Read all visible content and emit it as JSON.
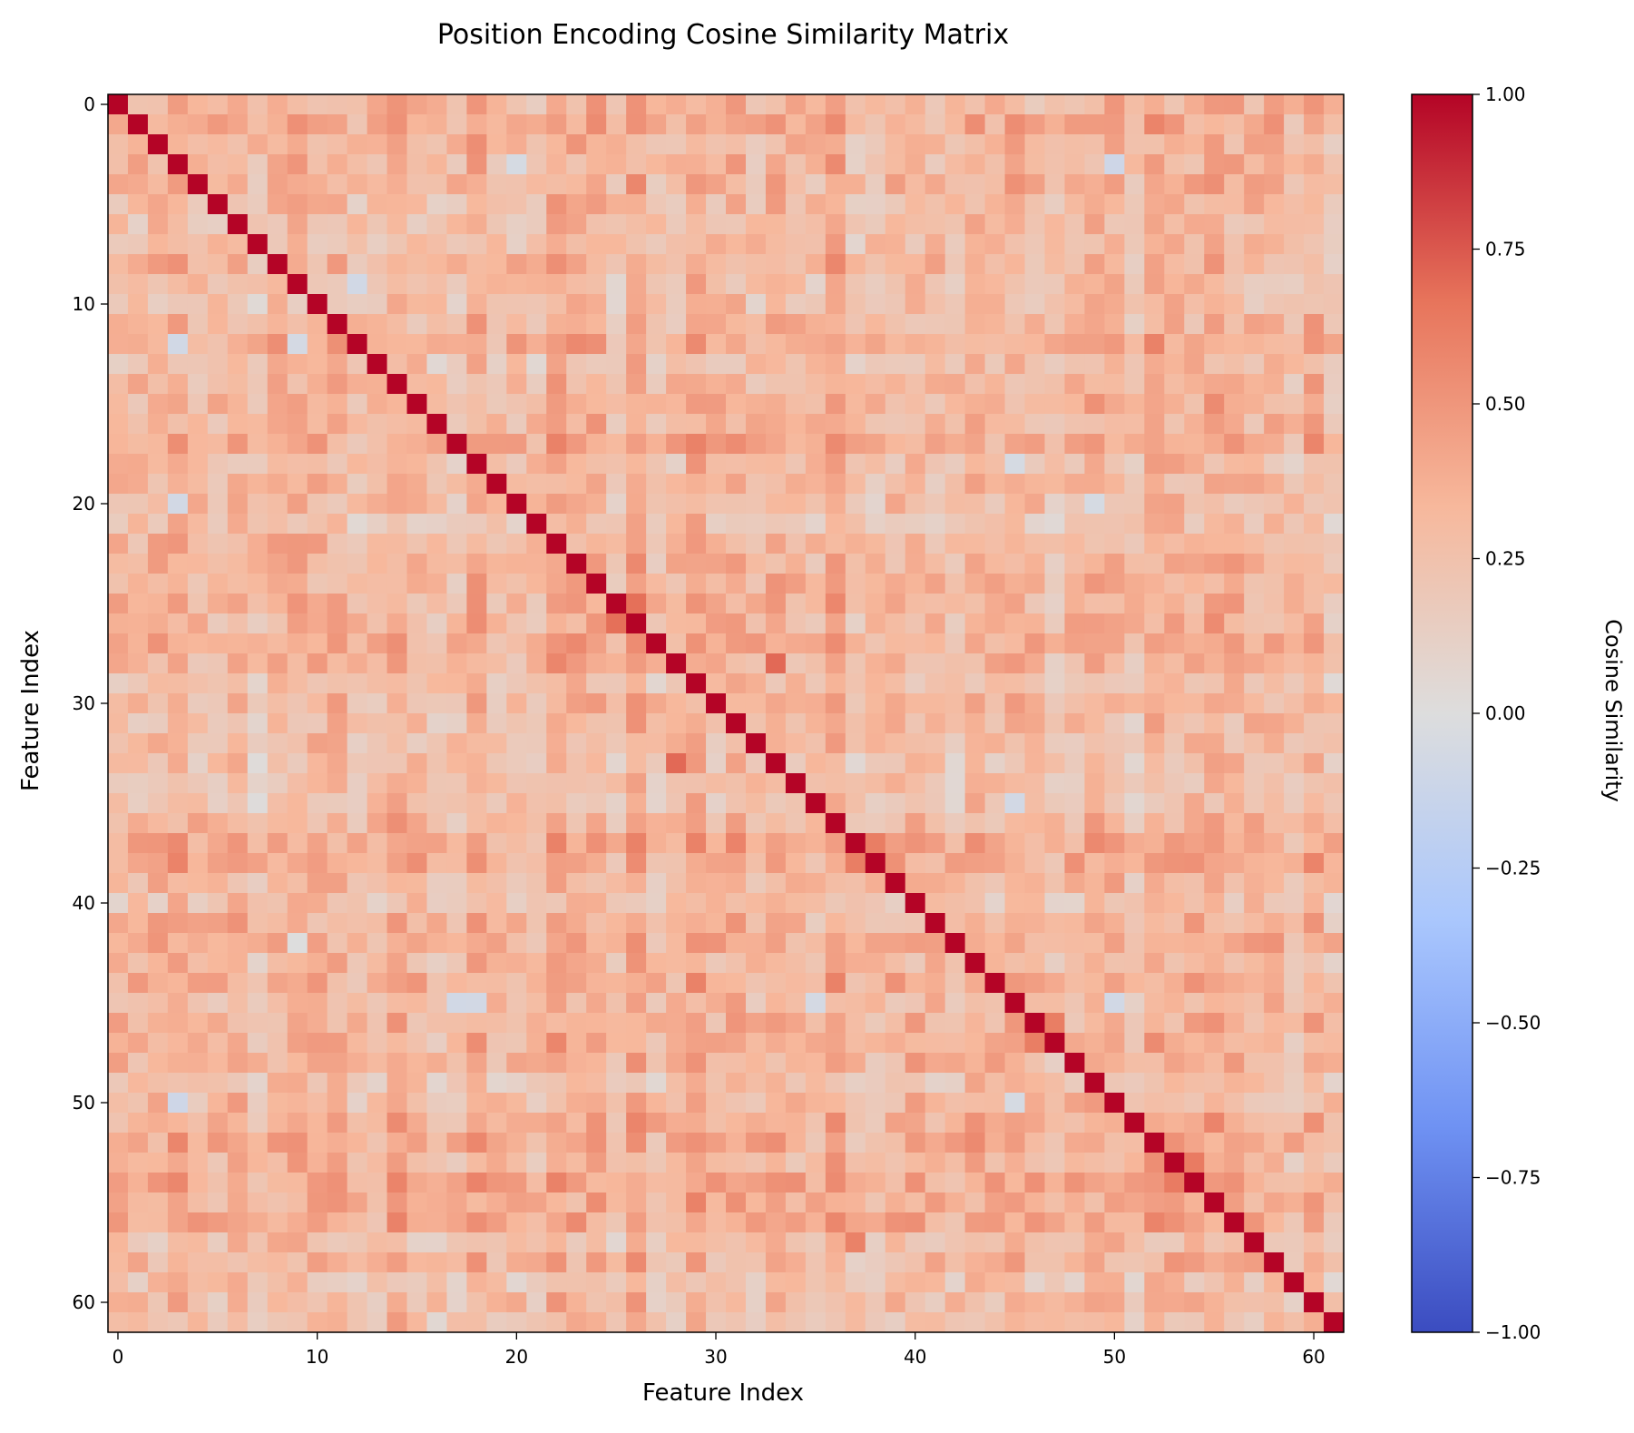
{
  "chart_data": {
    "type": "heatmap",
    "title": "Position Encoding Cosine Similarity Matrix",
    "xlabel": "Feature Index",
    "ylabel": "Feature Index",
    "colorbar_label": "Cosine Similarity",
    "colormap": "coolwarm",
    "colormap_stops": [
      "#3b4cc0",
      "#6f92f3",
      "#aac7fd",
      "#dddddd",
      "#f7b89c",
      "#e7745b",
      "#b40426"
    ],
    "size": 62,
    "x_ticks": [
      0,
      10,
      20,
      30,
      40,
      50,
      60
    ],
    "y_ticks": [
      0,
      10,
      20,
      30,
      40,
      50,
      60
    ],
    "x_tick_labels": [
      "0",
      "10",
      "20",
      "30",
      "40",
      "50",
      "60"
    ],
    "y_tick_labels": [
      "0",
      "10",
      "20",
      "30",
      "40",
      "50",
      "60"
    ],
    "value_range": [
      -1.0,
      1.0
    ],
    "colorbar_ticks": [
      1.0,
      0.75,
      0.5,
      0.25,
      0.0,
      -0.25,
      -0.5,
      -0.75,
      -1.0
    ],
    "colorbar_tick_labels": [
      "1.00",
      "0.75",
      "0.50",
      "0.25",
      "0.00",
      "−0.25",
      "−0.50",
      "−0.75",
      "−1.00"
    ],
    "diagonal_value": 1.0,
    "typical_off_diagonal_range": [
      0.0,
      0.7
    ],
    "typical_off_diagonal_mean": 0.32,
    "notable_cells": [
      {
        "row": 3,
        "col": 20,
        "value": -0.05
      },
      {
        "row": 3,
        "col": 50,
        "value": -0.1
      },
      {
        "row": 9,
        "col": 12,
        "value": -0.08
      },
      {
        "row": 12,
        "col": 3,
        "value": -0.08
      },
      {
        "row": 12,
        "col": 9,
        "value": -0.06
      },
      {
        "row": 18,
        "col": 45,
        "value": -0.05
      },
      {
        "row": 20,
        "col": 3,
        "value": -0.07
      },
      {
        "row": 20,
        "col": 49,
        "value": -0.05
      },
      {
        "row": 35,
        "col": 45,
        "value": -0.07
      },
      {
        "row": 45,
        "col": 17,
        "value": -0.08
      },
      {
        "row": 45,
        "col": 18,
        "value": -0.07
      },
      {
        "row": 45,
        "col": 35,
        "value": -0.06
      },
      {
        "row": 45,
        "col": 50,
        "value": -0.08
      },
      {
        "row": 50,
        "col": 3,
        "value": -0.1
      },
      {
        "row": 50,
        "col": 45,
        "value": -0.05
      },
      {
        "row": 25,
        "col": 26,
        "value": 0.68
      },
      {
        "row": 26,
        "col": 25,
        "value": 0.68
      },
      {
        "row": 28,
        "col": 33,
        "value": 0.7
      },
      {
        "row": 33,
        "col": 28,
        "value": 0.7
      },
      {
        "row": 37,
        "col": 38,
        "value": 0.62
      },
      {
        "row": 38,
        "col": 37,
        "value": 0.62
      },
      {
        "row": 46,
        "col": 47,
        "value": 0.62
      },
      {
        "row": 47,
        "col": 46,
        "value": 0.62
      },
      {
        "row": 53,
        "col": 54,
        "value": 0.63
      },
      {
        "row": 54,
        "col": 53,
        "value": 0.63
      },
      {
        "row": 42,
        "col": 9,
        "value": 0.0
      },
      {
        "row": 57,
        "col": 37,
        "value": 0.6
      }
    ]
  }
}
